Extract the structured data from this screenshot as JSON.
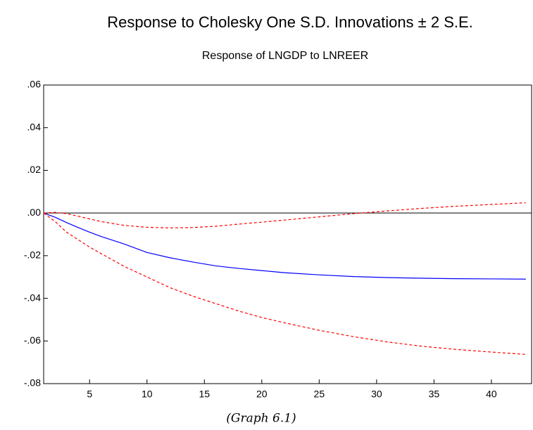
{
  "chart_data": {
    "type": "line",
    "title": "Response to Cholesky One S.D. Innovations ± 2 S.E.",
    "subtitle": "Response of LNGDP to LNREER",
    "caption": "(Graph 6.1)",
    "x": [
      1,
      2,
      3,
      4,
      5,
      6,
      8,
      10,
      12,
      14,
      16,
      18,
      20,
      22,
      25,
      28,
      31,
      34,
      37,
      40,
      43
    ],
    "series": [
      {
        "color": "#0000ff",
        "dashed": false,
        "values": [
          0,
          -0.002,
          -0.0045,
          -0.0068,
          -0.009,
          -0.011,
          -0.0145,
          -0.0185,
          -0.021,
          -0.023,
          -0.0248,
          -0.026,
          -0.027,
          -0.028,
          -0.029,
          -0.0298,
          -0.0303,
          -0.0306,
          -0.0308,
          -0.0309,
          -0.031
        ]
      },
      {
        "color": "#ff0000",
        "dashed": true,
        "values": [
          0,
          0.0003,
          -0.0003,
          -0.0015,
          -0.0028,
          -0.004,
          -0.0058,
          -0.0067,
          -0.007,
          -0.0068,
          -0.0062,
          -0.0052,
          -0.0043,
          -0.0033,
          -0.0018,
          -0.0003,
          0.001,
          0.0022,
          0.0032,
          0.004,
          0.0048
        ]
      },
      {
        "color": "#ff0000",
        "dashed": true,
        "values": [
          0,
          -0.004,
          -0.009,
          -0.0125,
          -0.016,
          -0.019,
          -0.025,
          -0.03,
          -0.035,
          -0.039,
          -0.0425,
          -0.046,
          -0.049,
          -0.0515,
          -0.055,
          -0.058,
          -0.0605,
          -0.0625,
          -0.064,
          -0.0652,
          -0.0663
        ]
      }
    ],
    "xlim": [
      1,
      43.5
    ],
    "xticks": [
      5,
      10,
      15,
      20,
      25,
      30,
      35,
      40
    ],
    "ylim": [
      -0.08,
      0.06
    ],
    "yticks": [
      {
        "value": -0.08,
        "label": "-.08"
      },
      {
        "value": -0.06,
        "label": "-.06"
      },
      {
        "value": -0.04,
        "label": "-.04"
      },
      {
        "value": -0.02,
        "label": "-.02"
      },
      {
        "value": 0,
        "label": ".00"
      },
      {
        "value": 0.02,
        "label": ".02"
      },
      {
        "value": 0.04,
        "label": ".04"
      },
      {
        "value": 0.06,
        "label": ".06"
      }
    ],
    "zero_line": true,
    "grid": false
  }
}
